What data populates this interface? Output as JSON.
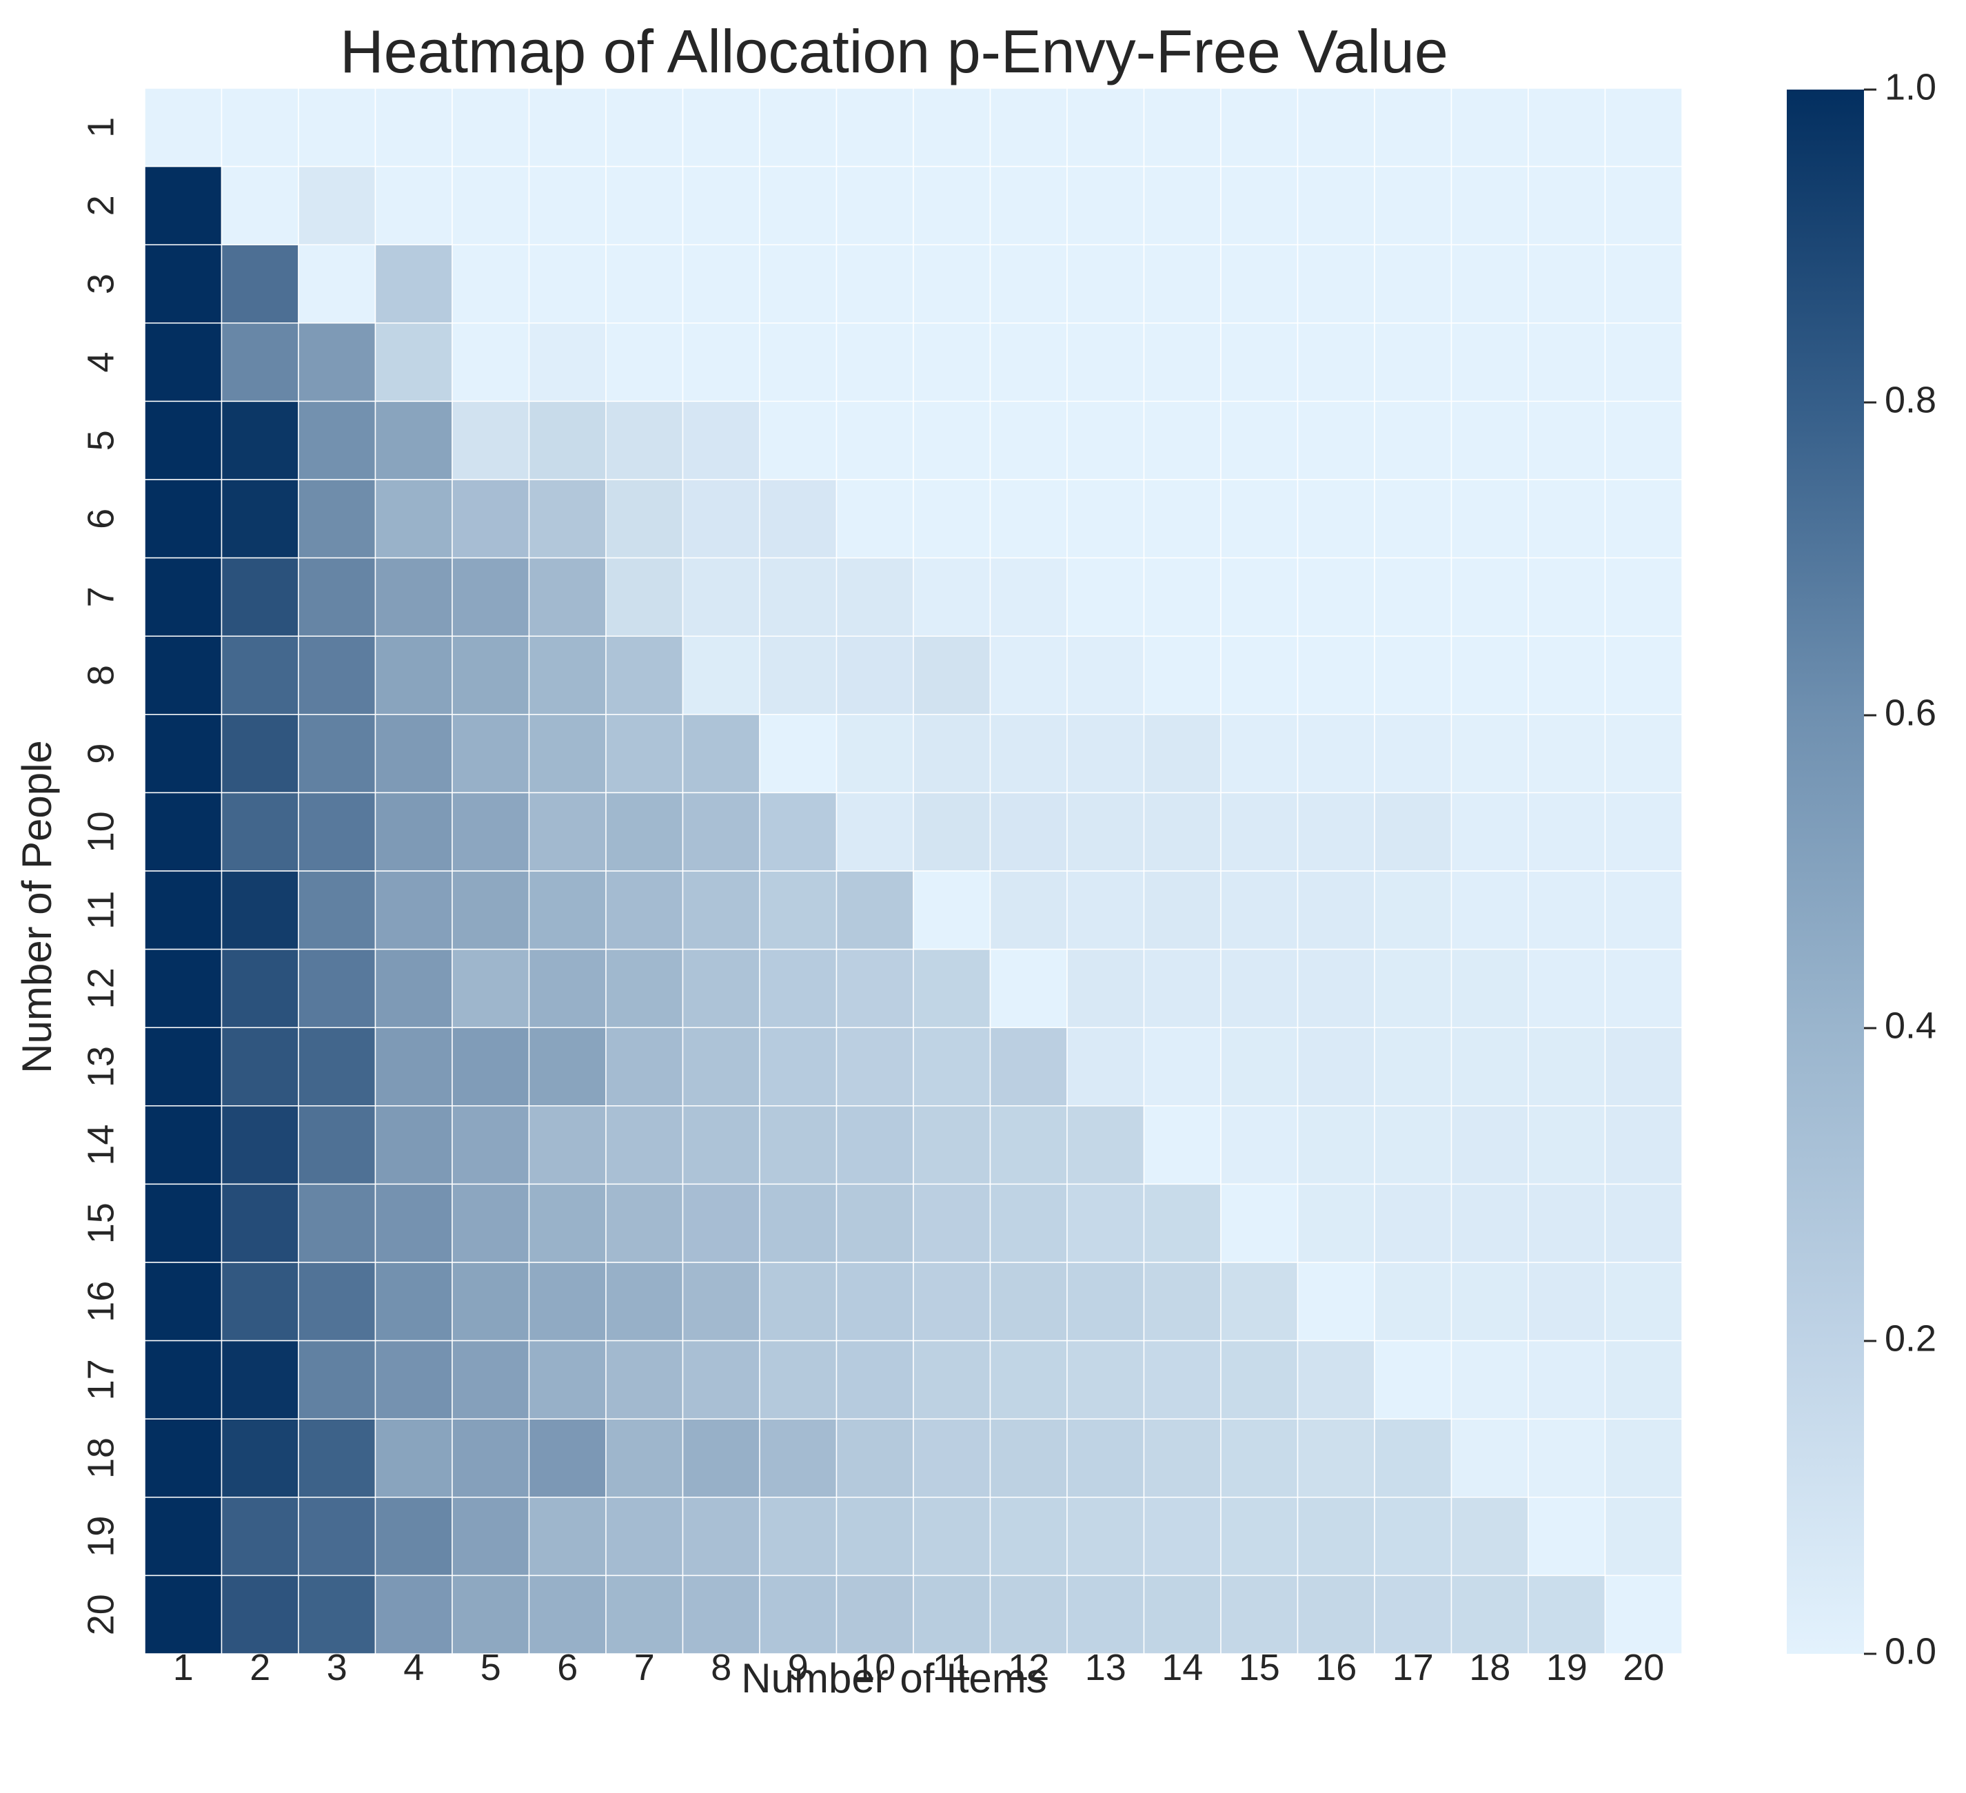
{
  "chart_data": {
    "type": "heatmap",
    "title": "Heatmap of Allocation p-Envy-Free Value",
    "xlabel": "Number of Items",
    "ylabel": "Number of People",
    "x_categories": [
      "1",
      "2",
      "3",
      "4",
      "5",
      "6",
      "7",
      "8",
      "9",
      "10",
      "11",
      "12",
      "13",
      "14",
      "15",
      "16",
      "17",
      "18",
      "19",
      "20"
    ],
    "y_categories": [
      "1",
      "2",
      "3",
      "4",
      "5",
      "6",
      "7",
      "8",
      "9",
      "10",
      "11",
      "12",
      "13",
      "14",
      "15",
      "16",
      "17",
      "18",
      "19",
      "20"
    ],
    "colorbar": {
      "range": [
        0.0,
        1.0
      ],
      "ticks": [
        "0.0",
        "0.2",
        "0.4",
        "0.6",
        "0.8",
        "1.0"
      ]
    },
    "colormap": [
      "#e3f2fd",
      "#032f60"
    ],
    "grid_line_color": "#ffffff",
    "values": [
      [
        0.0,
        0.0,
        0.0,
        0.0,
        0.0,
        0.0,
        0.0,
        0.0,
        0.0,
        0.0,
        0.0,
        0.0,
        0.0,
        0.0,
        0.0,
        0.0,
        0.0,
        0.0,
        0.0,
        0.0
      ],
      [
        1.0,
        0.0,
        0.05,
        0.0,
        0.0,
        0.0,
        0.0,
        0.0,
        0.0,
        0.0,
        0.0,
        0.0,
        0.0,
        0.0,
        0.0,
        0.0,
        0.0,
        0.0,
        0.0,
        0.0
      ],
      [
        1.0,
        0.67,
        0.0,
        0.2,
        0.0,
        0.0,
        0.0,
        0.0,
        0.0,
        0.0,
        0.0,
        0.0,
        0.0,
        0.0,
        0.0,
        0.0,
        0.0,
        0.0,
        0.0,
        0.0
      ],
      [
        1.0,
        0.55,
        0.45,
        0.15,
        0.0,
        0.02,
        0.0,
        0.0,
        0.0,
        0.0,
        0.0,
        0.0,
        0.0,
        0.0,
        0.0,
        0.0,
        0.0,
        0.0,
        0.0,
        0.0
      ],
      [
        1.0,
        0.96,
        0.5,
        0.4,
        0.08,
        0.12,
        0.08,
        0.06,
        0.0,
        0.0,
        0.0,
        0.0,
        0.0,
        0.0,
        0.0,
        0.0,
        0.0,
        0.0,
        0.0,
        0.0
      ],
      [
        1.0,
        0.96,
        0.52,
        0.33,
        0.27,
        0.22,
        0.1,
        0.06,
        0.06,
        0.0,
        0.0,
        0.0,
        0.0,
        0.0,
        0.0,
        0.0,
        0.0,
        0.0,
        0.0,
        0.0
      ],
      [
        1.0,
        0.82,
        0.56,
        0.43,
        0.39,
        0.29,
        0.1,
        0.05,
        0.05,
        0.05,
        0.02,
        0.02,
        0.0,
        0.0,
        0.0,
        0.0,
        0.0,
        0.0,
        0.0,
        0.0
      ],
      [
        1.0,
        0.71,
        0.6,
        0.4,
        0.36,
        0.3,
        0.24,
        0.03,
        0.05,
        0.06,
        0.08,
        0.02,
        0.02,
        0.0,
        0.0,
        0.0,
        0.0,
        0.0,
        0.0,
        0.0
      ],
      [
        1.0,
        0.8,
        0.58,
        0.45,
        0.34,
        0.3,
        0.24,
        0.24,
        0.0,
        0.03,
        0.05,
        0.04,
        0.04,
        0.05,
        0.02,
        0.02,
        0.02,
        0.01,
        0.01,
        0.01
      ],
      [
        1.0,
        0.72,
        0.62,
        0.45,
        0.39,
        0.29,
        0.3,
        0.26,
        0.2,
        0.04,
        0.07,
        0.06,
        0.05,
        0.05,
        0.04,
        0.04,
        0.05,
        0.02,
        0.02,
        0.02
      ],
      [
        1.0,
        0.93,
        0.58,
        0.42,
        0.38,
        0.32,
        0.28,
        0.24,
        0.19,
        0.21,
        0.0,
        0.05,
        0.04,
        0.05,
        0.04,
        0.04,
        0.03,
        0.02,
        0.02,
        0.02
      ],
      [
        1.0,
        0.82,
        0.62,
        0.45,
        0.31,
        0.34,
        0.3,
        0.24,
        0.2,
        0.18,
        0.15,
        0.0,
        0.05,
        0.04,
        0.04,
        0.04,
        0.03,
        0.03,
        0.02,
        0.02
      ],
      [
        1.0,
        0.8,
        0.72,
        0.45,
        0.44,
        0.4,
        0.28,
        0.24,
        0.2,
        0.18,
        0.16,
        0.18,
        0.04,
        0.02,
        0.03,
        0.04,
        0.03,
        0.03,
        0.03,
        0.04
      ],
      [
        1.0,
        0.88,
        0.66,
        0.45,
        0.39,
        0.29,
        0.26,
        0.24,
        0.21,
        0.2,
        0.17,
        0.15,
        0.14,
        0.0,
        0.02,
        0.03,
        0.03,
        0.04,
        0.03,
        0.04
      ],
      [
        1.0,
        0.85,
        0.56,
        0.49,
        0.39,
        0.33,
        0.29,
        0.27,
        0.23,
        0.21,
        0.18,
        0.16,
        0.13,
        0.12,
        0.0,
        0.03,
        0.04,
        0.04,
        0.04,
        0.04
      ],
      [
        1.0,
        0.79,
        0.65,
        0.5,
        0.4,
        0.37,
        0.34,
        0.29,
        0.21,
        0.2,
        0.18,
        0.17,
        0.16,
        0.14,
        0.1,
        0.0,
        0.03,
        0.03,
        0.04,
        0.03
      ],
      [
        1.0,
        0.97,
        0.58,
        0.49,
        0.42,
        0.34,
        0.29,
        0.26,
        0.21,
        0.2,
        0.17,
        0.15,
        0.14,
        0.13,
        0.12,
        0.08,
        0.0,
        0.01,
        0.02,
        0.03
      ],
      [
        1.0,
        0.9,
        0.74,
        0.4,
        0.42,
        0.46,
        0.31,
        0.34,
        0.28,
        0.21,
        0.18,
        0.17,
        0.16,
        0.14,
        0.12,
        0.1,
        0.11,
        0.01,
        0.01,
        0.03
      ],
      [
        1.0,
        0.76,
        0.69,
        0.55,
        0.42,
        0.31,
        0.28,
        0.26,
        0.21,
        0.19,
        0.17,
        0.15,
        0.14,
        0.13,
        0.12,
        0.12,
        0.11,
        0.1,
        0.0,
        0.03
      ],
      [
        1.0,
        0.81,
        0.74,
        0.46,
        0.38,
        0.34,
        0.3,
        0.28,
        0.23,
        0.22,
        0.19,
        0.17,
        0.16,
        0.15,
        0.14,
        0.14,
        0.13,
        0.12,
        0.11,
        0.0
      ]
    ]
  }
}
